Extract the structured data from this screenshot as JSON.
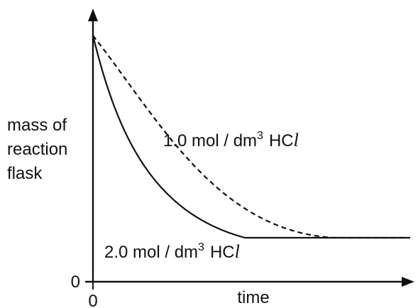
{
  "chart_data": {
    "type": "line",
    "title": "",
    "xlabel": "time",
    "ylabel": "mass of reaction flask",
    "ylabel_lines": [
      "mass of",
      "reaction",
      "flask"
    ],
    "x_tick_label": "0",
    "y_tick_label": "0",
    "axis_color": "#111111",
    "grid": false,
    "series": [
      {
        "name": "1.0 mol / dm3 HCl",
        "label_parts": {
          "main": "1.0 mol / dm",
          "sup": "3",
          "acid": "HC",
          "el": "l"
        },
        "style": "dashed",
        "color": "#111111",
        "shape": "exponential decay from initial mass to a constant final mass, reaching the plateau later"
      },
      {
        "name": "2.0 mol / dm3 HCl",
        "label_parts": {
          "main": "2.0 mol / dm",
          "sup": "3",
          "acid": "HC",
          "el": "l"
        },
        "style": "solid",
        "color": "#111111",
        "shape": "steeper exponential decay from the same initial mass to the same final mass, reaching the plateau earlier"
      }
    ]
  }
}
